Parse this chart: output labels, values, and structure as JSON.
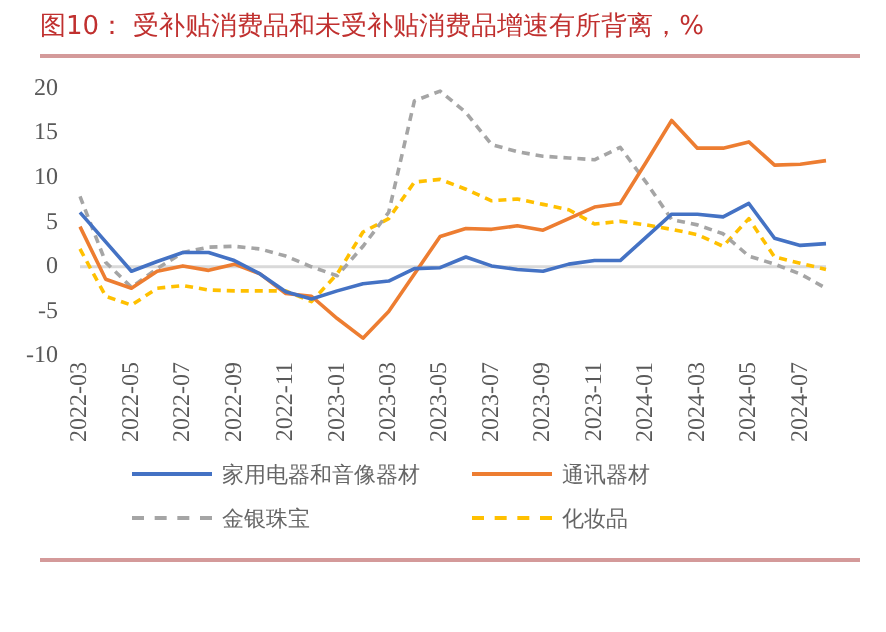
{
  "chart_data": {
    "type": "line",
    "title": "图10：  受补贴消费品和未受补贴消费品增速有所背离，%",
    "categories": [
      "2022-03",
      null,
      "2022-05",
      null,
      "2022-07",
      null,
      "2022-09",
      null,
      "2022-11",
      null,
      "2023-01",
      null,
      "2023-03",
      null,
      "2023-05",
      null,
      "2023-07",
      null,
      "2023-09",
      null,
      "2023-11",
      null,
      "2024-01",
      null,
      "2024-03",
      null,
      "2024-05",
      null,
      "2024-07",
      null
    ],
    "series": [
      {
        "name": "家用电器和音像器材",
        "color": "#4472c4",
        "line_style": "solid",
        "values": [
          6.1,
          2.8,
          -0.5,
          0.6,
          1.6,
          1.6,
          0.7,
          -0.8,
          -2.8,
          -3.6,
          -2.7,
          -1.9,
          -1.6,
          -0.2,
          -0.1,
          1.1,
          0.1,
          -0.3,
          -0.5,
          0.3,
          0.7,
          0.7,
          3.3,
          5.9,
          5.9,
          5.6,
          7.1,
          3.2,
          2.4,
          2.6
        ]
      },
      {
        "name": "通讯器材",
        "color": "#ed7d31",
        "line_style": "solid",
        "values": [
          4.5,
          -1.4,
          -2.4,
          -0.5,
          0.1,
          -0.4,
          0.3,
          -0.8,
          -3.0,
          -3.3,
          -5.8,
          -8.0,
          -5.0,
          -0.8,
          3.4,
          4.3,
          4.2,
          4.6,
          4.1,
          5.4,
          6.7,
          7.1,
          11.7,
          16.4,
          13.3,
          13.3,
          14.0,
          11.4,
          11.5,
          11.9
        ]
      },
      {
        "name": "金银珠宝",
        "color": "#a5a5a5",
        "line_style": "dashed",
        "values": [
          7.9,
          0.5,
          -2.3,
          -0.2,
          1.6,
          2.2,
          2.3,
          2.0,
          1.2,
          0.0,
          -1.0,
          2.3,
          6.1,
          18.6,
          19.7,
          17.3,
          13.7,
          12.9,
          12.4,
          12.2,
          12.0,
          13.4,
          9.5,
          5.3,
          4.7,
          3.7,
          1.2,
          0.3,
          -0.8,
          -2.4
        ]
      },
      {
        "name": "化妆品",
        "color": "#ffc000",
        "line_style": "dashed",
        "values": [
          2.0,
          -3.3,
          -4.3,
          -2.4,
          -2.1,
          -2.6,
          -2.7,
          -2.7,
          -2.7,
          -3.9,
          -0.8,
          3.9,
          5.4,
          9.5,
          9.8,
          8.7,
          7.4,
          7.6,
          7.0,
          6.4,
          4.8,
          5.1,
          4.7,
          4.2,
          3.6,
          2.3,
          5.4,
          1.1,
          0.4,
          -0.3
        ]
      }
    ],
    "ylim": [
      -10,
      20
    ],
    "yticks": [
      -10,
      -5,
      0,
      5,
      10,
      15,
      20
    ],
    "ref_lines": [
      {
        "axis": "y",
        "value": 0,
        "color": "#d9d9d9"
      }
    ],
    "legend": "bottom",
    "marker": "none"
  }
}
